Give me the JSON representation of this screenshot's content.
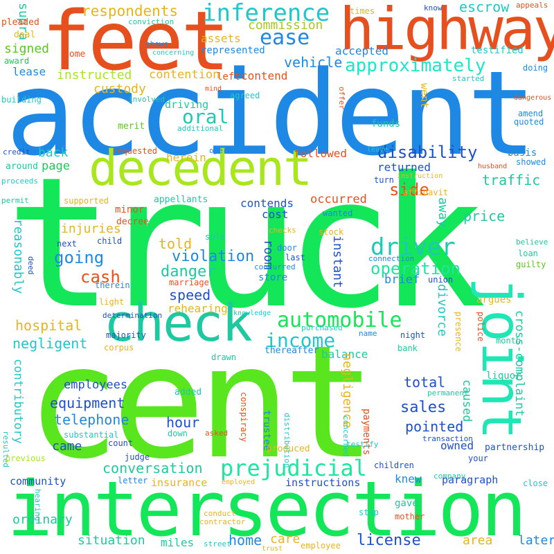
{
  "colors": {
    "background": "#ffffff",
    "palette": [
      "#1e88e5",
      "#14e65a",
      "#5ae61e",
      "#e6501e",
      "#a8e61e",
      "#1ee6c8",
      "#1e50c8",
      "#e6b41e"
    ]
  },
  "words": [
    {
      "text": "truck",
      "color": "#14e65a"
    },
    {
      "text": "accident",
      "color": "#1e88e5"
    },
    {
      "text": "cent",
      "color": "#5ae61e"
    },
    {
      "text": "intersection",
      "color": "#14e65a"
    },
    {
      "text": "feet",
      "color": "#e6501e"
    },
    {
      "text": "highway",
      "color": "#e6501e"
    },
    {
      "text": "decedent",
      "color": "#a8e61e"
    },
    {
      "text": "check",
      "color": "#1ec8a0"
    },
    {
      "text": "joint",
      "color": "#1ee6b4"
    },
    {
      "text": "inference",
      "color": "#1ec8c8"
    },
    {
      "text": "ease",
      "color": "#1e88e5"
    },
    {
      "text": "approximately",
      "color": "#1ee6c8"
    },
    {
      "text": "prejudicial",
      "color": "#1ee6a0"
    },
    {
      "text": "automobile",
      "color": "#14e65a"
    },
    {
      "text": "income",
      "color": "#1ec8c8"
    },
    {
      "text": "driver",
      "color": "#1ec8b4"
    },
    {
      "text": "operation",
      "color": "#1ee6a0"
    },
    {
      "text": "disability",
      "color": "#1e50c8"
    },
    {
      "text": "respondents",
      "color": "#e6b41e"
    },
    {
      "text": "commission",
      "color": "#a8c81e"
    },
    {
      "text": "escrow",
      "color": "#1ec8c8"
    },
    {
      "text": "supra",
      "color": "#1ec8a0"
    },
    {
      "text": "signed",
      "color": "#5ac81e"
    },
    {
      "text": "lease",
      "color": "#1e88e5"
    },
    {
      "text": "instructed",
      "color": "#a8e61e"
    },
    {
      "text": "contention",
      "color": "#e6b41e"
    },
    {
      "text": "left",
      "color": "#e6501e"
    },
    {
      "text": "contend",
      "color": "#e6501e"
    },
    {
      "text": "accepted",
      "color": "#1e88e5"
    },
    {
      "text": "testified",
      "color": "#1ec8c8"
    },
    {
      "text": "vehicle",
      "color": "#1e88e5"
    },
    {
      "text": "assets",
      "color": "#e6b41e"
    },
    {
      "text": "represented",
      "color": "#1e88e5"
    },
    {
      "text": "pleaded",
      "color": "#e6501e"
    },
    {
      "text": "deal",
      "color": "#e6b41e"
    },
    {
      "text": "award",
      "color": "#1ec85a"
    },
    {
      "text": "come",
      "color": "#e6501e"
    },
    {
      "text": "conviction",
      "color": "#1ec8a0"
    },
    {
      "text": "shows",
      "color": "#1e88e5"
    },
    {
      "text": "concerning",
      "color": "#1ec8c8"
    },
    {
      "text": "times",
      "color": "#e6b41e"
    },
    {
      "text": "know",
      "color": "#1e50c8"
    },
    {
      "text": "appeals",
      "color": "#e6501e"
    },
    {
      "text": "doing",
      "color": "#1e88e5"
    },
    {
      "text": "started",
      "color": "#1ec8c8"
    },
    {
      "text": "dangerous",
      "color": "#e6501e"
    },
    {
      "text": "amend",
      "color": "#1e88e5"
    },
    {
      "text": "quoted",
      "color": "#1e88e5"
    },
    {
      "text": "custody",
      "color": "#e6b41e"
    },
    {
      "text": "oral",
      "color": "#1ec8b4"
    },
    {
      "text": "driving",
      "color": "#1ec8a0"
    },
    {
      "text": "merit",
      "color": "#5ac81e"
    },
    {
      "text": "involved",
      "color": "#1ec8a0"
    },
    {
      "text": "agreed",
      "color": "#1ec8c8"
    },
    {
      "text": "mind",
      "color": "#e6501e"
    },
    {
      "text": "offer",
      "color": "#e6501e"
    },
    {
      "text": "building",
      "color": "#1ec8c8"
    },
    {
      "text": "additional",
      "color": "#1ec8c8"
    },
    {
      "text": "funds",
      "color": "#1ec8a0"
    },
    {
      "text": "basis",
      "color": "#1e88e5"
    },
    {
      "text": "credit",
      "color": "#1e50c8"
    },
    {
      "text": "back",
      "color": "#1ec8c8"
    },
    {
      "text": "herein",
      "color": "#e6b41e"
    },
    {
      "text": "requested",
      "color": "#e6501e"
    },
    {
      "text": "operated",
      "color": "#1e88e5"
    },
    {
      "text": "followed",
      "color": "#e6501e"
    },
    {
      "text": "leave",
      "color": "#1ec8c8"
    },
    {
      "text": "showed",
      "color": "#1e88e5"
    },
    {
      "text": "husband",
      "color": "#e6501e"
    },
    {
      "text": "around",
      "color": "#1ec8a0"
    },
    {
      "text": "page",
      "color": "#1ec85a"
    },
    {
      "text": "returned",
      "color": "#1e50c8"
    },
    {
      "text": "went",
      "color": "#e6b41e"
    },
    {
      "text": "proceeds",
      "color": "#1ec8c8"
    },
    {
      "text": "turn",
      "color": "#1e50c8"
    },
    {
      "text": "instruction",
      "color": "#e6b41e"
    },
    {
      "text": "side",
      "color": "#e6501e"
    },
    {
      "text": "traffic",
      "color": "#1ec8a0"
    },
    {
      "text": "permit",
      "color": "#1ec8a0"
    },
    {
      "text": "supported",
      "color": "#e6b41e"
    },
    {
      "text": "minor",
      "color": "#e6501e"
    },
    {
      "text": "appellants",
      "color": "#1ec8a0"
    },
    {
      "text": "decree",
      "color": "#e6501e"
    },
    {
      "text": "contends",
      "color": "#1e50c8"
    },
    {
      "text": "occurred",
      "color": "#e6501e"
    },
    {
      "text": "affidavit",
      "color": "#e6b41e"
    },
    {
      "text": "wanted",
      "color": "#1e88e5"
    },
    {
      "text": "price",
      "color": "#1ec8a0"
    },
    {
      "text": "cost",
      "color": "#1e50c8"
    },
    {
      "text": "checks",
      "color": "#e6b41e"
    },
    {
      "text": "stock",
      "color": "#e6b41e"
    },
    {
      "text": "away",
      "color": "#1ec8a0"
    },
    {
      "text": "injuries",
      "color": "#e6b41e"
    },
    {
      "text": "sole",
      "color": "#1ec8a0"
    },
    {
      "text": "reasonably",
      "color": "#1ec8c8"
    },
    {
      "text": "next",
      "color": "#1e50c8"
    },
    {
      "text": "child",
      "color": "#1e50c8"
    },
    {
      "text": "room",
      "color": "#1e50c8"
    },
    {
      "text": "door",
      "color": "#1e88e5"
    },
    {
      "text": "told",
      "color": "#e6b41e"
    },
    {
      "text": "going",
      "color": "#1e88e5"
    },
    {
      "text": "concurred",
      "color": "#1e88e5"
    },
    {
      "text": "last",
      "color": "#1e50c8"
    },
    {
      "text": "instant",
      "color": "#1e50c8"
    },
    {
      "text": "connection",
      "color": "#1e88e5"
    },
    {
      "text": "loan",
      "color": "#1ec8a0"
    },
    {
      "text": "believe",
      "color": "#1ec8a0"
    },
    {
      "text": "guilty",
      "color": "#5ac81e"
    },
    {
      "text": "deed",
      "color": "#1e50c8"
    },
    {
      "text": "violation",
      "color": "#1e88e5"
    },
    {
      "text": "cash",
      "color": "#e6501e"
    },
    {
      "text": "danger",
      "color": "#1ec8a0"
    },
    {
      "text": "store",
      "color": "#1e88e5"
    },
    {
      "text": "therein",
      "color": "#1e88e5"
    },
    {
      "text": "marriage",
      "color": "#e6501e"
    },
    {
      "text": "brief",
      "color": "#1e88e5"
    },
    {
      "text": "union",
      "color": "#1e50c8"
    },
    {
      "text": "light",
      "color": "#e6b41e"
    },
    {
      "text": "speed",
      "color": "#1e50c8"
    },
    {
      "text": "rehearing",
      "color": "#e6b41e"
    },
    {
      "text": "knowledge",
      "color": "#1ec8c8"
    },
    {
      "text": "divorce",
      "color": "#1ec8c8"
    },
    {
      "text": "argues",
      "color": "#e6b41e"
    },
    {
      "text": "determination",
      "color": "#1e50c8"
    },
    {
      "text": "presence",
      "color": "#e6b41e"
    },
    {
      "text": "police",
      "color": "#e6501e"
    },
    {
      "text": "purchased",
      "color": "#1ec8c8"
    },
    {
      "text": "hospital",
      "color": "#e6b41e"
    },
    {
      "text": "night",
      "color": "#1e50c8"
    },
    {
      "text": "month",
      "color": "#1ec8a0"
    },
    {
      "text": "name",
      "color": "#1e88e5"
    },
    {
      "text": "negligent",
      "color": "#1ec8c8"
    },
    {
      "text": "majority",
      "color": "#1e50c8"
    },
    {
      "text": "bank",
      "color": "#1ec8a0"
    },
    {
      "text": "balance",
      "color": "#1ec8a0"
    },
    {
      "text": "corpus",
      "color": "#e6b41e"
    },
    {
      "text": "drawn",
      "color": "#1ec8a0"
    },
    {
      "text": "thereafter",
      "color": "#1e88e5"
    },
    {
      "text": "liquor",
      "color": "#1ec8a0"
    },
    {
      "text": "contributory",
      "color": "#1ec8c8"
    },
    {
      "text": "employees",
      "color": "#1e50c8"
    },
    {
      "text": "negligence",
      "color": "#e6b41e"
    },
    {
      "text": "total",
      "color": "#1e50c8"
    },
    {
      "text": "caused",
      "color": "#1ec8a0"
    },
    {
      "text": "cross-complaint",
      "color": "#1ec8a0"
    },
    {
      "text": "added",
      "color": "#1ec8a0"
    },
    {
      "text": "permanent",
      "color": "#1ec8a0"
    },
    {
      "text": "company",
      "color": "#1ec8a0"
    },
    {
      "text": "equipment",
      "color": "#1e50c8"
    },
    {
      "text": "sales",
      "color": "#1e50c8"
    },
    {
      "text": "telephone",
      "color": "#1e88e5"
    },
    {
      "text": "conspiracy",
      "color": "#e6501e"
    },
    {
      "text": "trustee",
      "color": "#1e88e5"
    },
    {
      "text": "payments",
      "color": "#e6501e"
    },
    {
      "text": "pointed",
      "color": "#1e50c8"
    },
    {
      "text": "substantial",
      "color": "#1ec8c8"
    },
    {
      "text": "hour",
      "color": "#1e50c8"
    },
    {
      "text": "down",
      "color": "#1ec8a0"
    },
    {
      "text": "asked",
      "color": "#e6501e"
    },
    {
      "text": "concerned",
      "color": "#1ec8c8"
    },
    {
      "text": "distribution",
      "color": "#1ec8c8"
    },
    {
      "text": "transaction",
      "color": "#1e50c8"
    },
    {
      "text": "owned",
      "color": "#1e50c8"
    },
    {
      "text": "resulted",
      "color": "#1ec8c8"
    },
    {
      "text": "count",
      "color": "#1e50c8"
    },
    {
      "text": "came",
      "color": "#1e50c8"
    },
    {
      "text": "testify",
      "color": "#1ec8c8"
    },
    {
      "text": "produced",
      "color": "#e6b41e"
    },
    {
      "text": "partnership",
      "color": "#1e50c8"
    },
    {
      "text": "judge",
      "color": "#1e50c8"
    },
    {
      "text": "children",
      "color": "#1e50c8"
    },
    {
      "text": "your",
      "color": "#1e50c8"
    },
    {
      "text": "previous",
      "color": "#a8e61e"
    },
    {
      "text": "conversation",
      "color": "#1ec8a0"
    },
    {
      "text": "community",
      "color": "#1e50c8"
    },
    {
      "text": "letter",
      "color": "#1e88e5"
    },
    {
      "text": "employed",
      "color": "#e6b41e"
    },
    {
      "text": "knew",
      "color": "#1e88e5"
    },
    {
      "text": "paragraph",
      "color": "#1e50c8"
    },
    {
      "text": "close",
      "color": "#1ec8c8"
    },
    {
      "text": "insurance",
      "color": "#e6b41e"
    },
    {
      "text": "instructions",
      "color": "#1e50c8"
    },
    {
      "text": "hearing",
      "color": "#1ec8c8"
    },
    {
      "text": "gave",
      "color": "#1ec8a0"
    },
    {
      "text": "conduct",
      "color": "#e6b41e"
    },
    {
      "text": "contractor",
      "color": "#e6b41e"
    },
    {
      "text": "stop",
      "color": "#1ec8c8"
    },
    {
      "text": "mother",
      "color": "#e6501e"
    },
    {
      "text": "ordinary",
      "color": "#1ec8a0"
    },
    {
      "text": "situation",
      "color": "#1ec8a0"
    },
    {
      "text": "miles",
      "color": "#1ec8a0"
    },
    {
      "text": "street",
      "color": "#1ec8c8"
    },
    {
      "text": "home",
      "color": "#1e88e5"
    },
    {
      "text": "care",
      "color": "#e6b41e"
    },
    {
      "text": "employee",
      "color": "#e6b41e"
    },
    {
      "text": "license",
      "color": "#1e50c8"
    },
    {
      "text": "area",
      "color": "#e6b41e"
    },
    {
      "text": "later",
      "color": "#1e88e5"
    },
    {
      "text": "trust",
      "color": "#e6b41e"
    }
  ]
}
